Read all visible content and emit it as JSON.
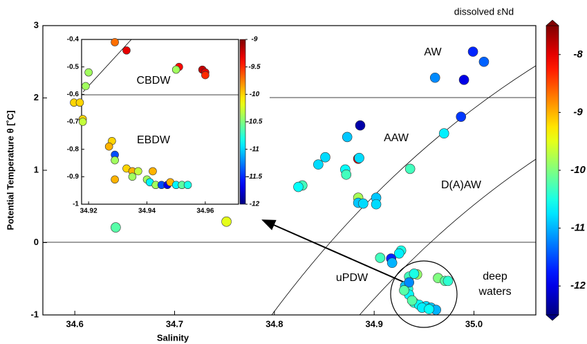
{
  "chart_data": [
    {
      "type": "scatter",
      "x_label": "Salinity",
      "y_label": "Potential Temperature θ [˚C]",
      "xlim": [
        34.568,
        35.062
      ],
      "ylim": [
        -1,
        3
      ],
      "xticks": [
        34.6,
        34.7,
        34.8,
        34.9,
        {
          "value": 35,
          "label": "35.0"
        }
      ],
      "yticks": [
        -1,
        0,
        1,
        2,
        3
      ],
      "colormap": "jet",
      "colorbar": {
        "title": "dissolved εNd",
        "lim": [
          -12.5,
          -7.5
        ],
        "ticks": [
          -8,
          -9,
          -10,
          -11,
          -12
        ]
      },
      "annotations": [
        "AW",
        "AAW",
        "D(A)AW",
        "uPDW",
        "deep",
        "waters"
      ],
      "x": [
        34.999,
        35.01,
        34.961,
        34.99,
        34.987,
        34.97,
        34.886,
        34.873,
        34.884,
        34.885,
        34.851,
        34.844,
        34.871,
        34.872,
        34.936,
        34.828,
        34.824,
        34.884,
        34.884,
        34.889,
        34.902,
        34.902,
        34.906,
        34.927,
        34.925,
        34.917,
        34.918,
        34.943,
        34.935,
        34.94,
        34.964,
        34.971,
        34.974,
        34.931,
        34.934,
        34.935,
        34.94,
        34.945,
        34.952,
        34.957,
        34.962,
        34.935,
        34.938,
        34.948,
        34.641,
        34.752,
        34.93,
        34.955
      ],
      "values": [
        2.64,
        2.5,
        2.28,
        2.25,
        1.74,
        1.51,
        1.62,
        1.46,
        1.16,
        1.17,
        1.18,
        1.08,
        1.01,
        0.94,
        1.02,
        0.79,
        0.77,
        0.62,
        0.55,
        0.54,
        0.62,
        0.53,
        -0.21,
        -0.11,
        -0.15,
        -0.22,
        -0.28,
        -0.44,
        -0.47,
        -0.43,
        -0.49,
        -0.53,
        -0.53,
        -0.6,
        -0.64,
        -0.72,
        -0.83,
        -0.86,
        -0.88,
        -0.9,
        -0.93,
        -0.55,
        -0.8,
        -0.9,
        0.21,
        0.29,
        -0.66,
        -0.92
      ],
      "color_values": [
        -11.7,
        -11.4,
        -11.2,
        -12.0,
        -11.6,
        -10.7,
        -12.3,
        -10.9,
        -8.0,
        -10.8,
        -10.8,
        -10.8,
        -10.6,
        -10.3,
        -10.3,
        -10.3,
        -10.6,
        -9.8,
        -10.9,
        -10.8,
        -10.9,
        -10.8,
        -10.3,
        -10.5,
        -10.7,
        -11.7,
        -11.0,
        -9.9,
        -10.3,
        -10.5,
        -10.0,
        -10.2,
        -10.4,
        -10.9,
        -10.4,
        -10.6,
        -10.4,
        -10.6,
        -10.8,
        -10.9,
        -11.0,
        -11.2,
        -10.2,
        -10.7,
        -10.2,
        -9.5,
        -10.2,
        -10.6
      ]
    },
    {
      "type": "scatter",
      "xlim": [
        34.9176,
        34.9714
      ],
      "ylim": [
        -1,
        -0.4
      ],
      "xticks": [
        34.92,
        34.94,
        34.96
      ],
      "yticks": [
        -1,
        -0.9,
        -0.8,
        -0.7,
        -0.6,
        -0.5,
        -0.4
      ],
      "colormap": "jet",
      "colorbar": {
        "lim": [
          -12,
          -9
        ],
        "ticks": [
          -9,
          -9.5,
          -10,
          -10.5,
          -11,
          -11.5,
          -12
        ]
      },
      "annotations": [
        "CBDW",
        "EBDW"
      ],
      "x": [
        34.929,
        34.933,
        34.951,
        34.95,
        34.959,
        34.96,
        34.96,
        34.92,
        34.919,
        34.915,
        34.917,
        34.918,
        34.918,
        34.928,
        34.927,
        34.929,
        34.929,
        34.933,
        34.935,
        34.935,
        34.937,
        34.942,
        34.929,
        34.94,
        34.941,
        34.943,
        34.945,
        34.947,
        34.948,
        34.95,
        34.952,
        34.954
      ],
      "values": [
        -0.41,
        -0.44,
        -0.5,
        -0.51,
        -0.51,
        -0.52,
        -0.53,
        -0.52,
        -0.57,
        -0.63,
        -0.63,
        -0.69,
        -0.7,
        -0.77,
        -0.79,
        -0.82,
        -0.84,
        -0.87,
        -0.88,
        -0.9,
        -0.88,
        -0.88,
        -0.91,
        -0.91,
        -0.92,
        -0.93,
        -0.93,
        -0.93,
        -0.92,
        -0.93,
        -0.93,
        -0.93
      ],
      "color_values": [
        -9.7,
        -9.3,
        -9.4,
        -10.4,
        -9.2,
        -9.3,
        -9.5,
        -10.4,
        -10.4,
        -10.0,
        -10.0,
        -10.0,
        -10.3,
        -10.0,
        -9.9,
        -11.4,
        -10.4,
        -10.0,
        -9.9,
        -10.4,
        -10.3,
        -9.9,
        -9.9,
        -10.4,
        -10.9,
        -10.4,
        -11.4,
        -11.7,
        -9.9,
        -10.9,
        -10.6,
        -10.8
      ]
    }
  ]
}
